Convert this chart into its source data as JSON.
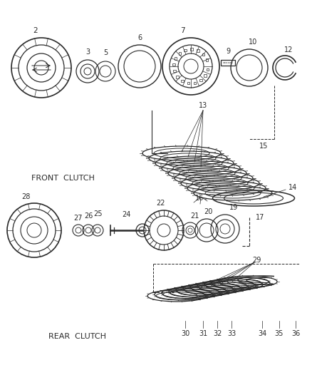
{
  "bg_color": "#ffffff",
  "line_color": "#2a2a2a",
  "front_clutch_label": "FRONT  CLUTCH",
  "rear_clutch_label": "REAR  CLUTCH",
  "figw": 4.38,
  "figh": 5.33,
  "dpi": 100
}
